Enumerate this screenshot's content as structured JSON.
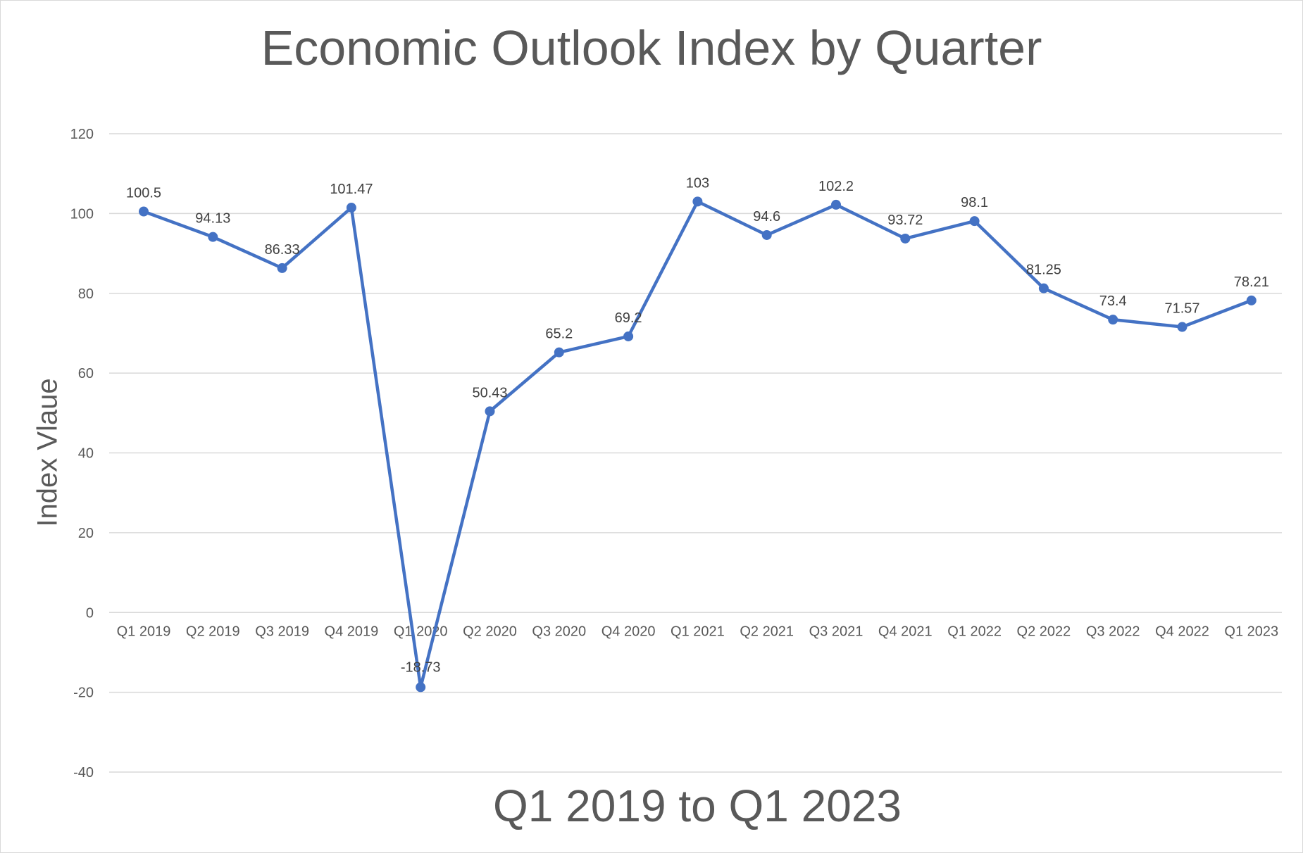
{
  "chart_data": {
    "type": "line",
    "title": "Economic Outlook Index by Quarter",
    "xlabel": "Q1 2019 to Q1 2023",
    "ylabel": "Index Vlaue",
    "categories": [
      "Q1 2019",
      "Q2 2019",
      "Q3 2019",
      "Q4 2019",
      "Q1 2020",
      "Q2 2020",
      "Q3 2020",
      "Q4 2020",
      "Q1 2021",
      "Q2 2021",
      "Q3 2021",
      "Q4 2021",
      "Q1 2022",
      "Q2 2022",
      "Q3 2022",
      "Q4 2022",
      "Q1 2023"
    ],
    "series": [
      {
        "values": [
          100.5,
          94.13,
          86.33,
          101.47,
          -18.73,
          50.43,
          65.2,
          69.2,
          103,
          94.6,
          102.2,
          93.72,
          98.1,
          81.25,
          73.4,
          71.57,
          78.21
        ],
        "labels": [
          "100.5",
          "94.13",
          "86.33",
          "101.47",
          "-18.73",
          "50.43",
          "65.2",
          "69.2",
          "103",
          "94.6",
          "102.2",
          "93.72",
          "98.1",
          "81.25",
          "73.4",
          "71.57",
          "78.21"
        ],
        "color": "#4472c4"
      }
    ],
    "yticks": [
      "120",
      "100",
      "80",
      "60",
      "40",
      "20",
      "0",
      "-20",
      "-40"
    ],
    "ylim": [
      -40,
      120
    ],
    "grid": true,
    "legend": "none"
  }
}
